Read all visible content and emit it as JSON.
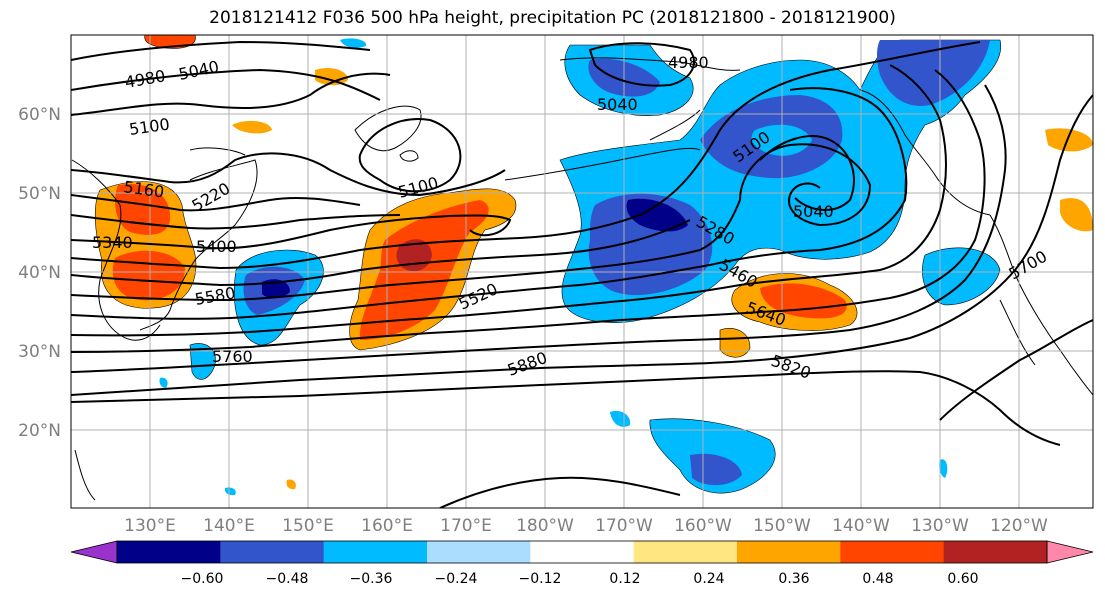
{
  "title": "2018121412 F036 500 hPa height, precipitation PC (2018121800 - 2018121900)",
  "map": {
    "lat_labels": [
      "60°N",
      "50°N",
      "40°N",
      "30°N",
      "20°N"
    ],
    "lon_labels": [
      "130°E",
      "140°E",
      "150°E",
      "160°E",
      "170°E",
      "180°W",
      "170°W",
      "160°W",
      "150°W",
      "140°W",
      "130°W",
      "120°W"
    ],
    "grid": true,
    "contour_labels": [
      "4980",
      "5040",
      "5100",
      "4980",
      "5040",
      "5100",
      "5160",
      "5220",
      "5100",
      "5040",
      "5340",
      "5400",
      "5280",
      "5460",
      "5580",
      "5520",
      "5640",
      "5700",
      "5760",
      "5880",
      "5820"
    ]
  },
  "colorbar": {
    "ticks": [
      "−0.60",
      "−0.48",
      "−0.36",
      "−0.24",
      "−0.12",
      "0.12",
      "0.24",
      "0.36",
      "0.48",
      "0.60"
    ],
    "colors": [
      "#9933cc",
      "#000088",
      "#3355cc",
      "#00bbff",
      "#aaddff",
      "#ffffff",
      "#ffe680",
      "#ffa500",
      "#ff4500",
      "#b22222",
      "#ff88aa"
    ]
  }
}
